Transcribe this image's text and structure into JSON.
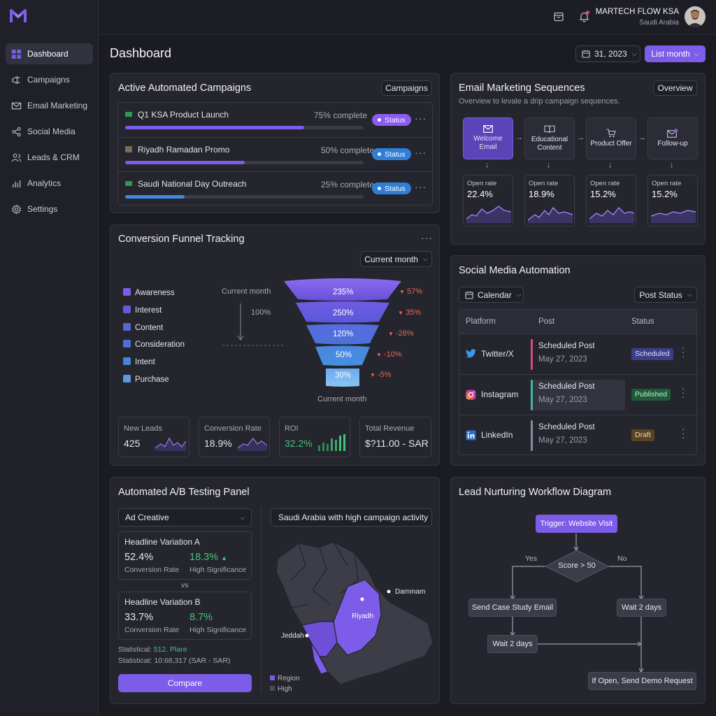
{
  "brand": {
    "accent": "#7c5ce8",
    "logo_icon": "m-logo-icon"
  },
  "sidebar": {
    "items": [
      {
        "label": "Dashboard",
        "icon": "grid-icon"
      },
      {
        "label": "Campaigns",
        "icon": "megaphone-icon"
      },
      {
        "label": "Email Marketing",
        "icon": "mail-icon"
      },
      {
        "label": "Social Media",
        "icon": "share-icon"
      },
      {
        "label": "Leads & CRM",
        "icon": "users-icon"
      },
      {
        "label": "Analytics",
        "icon": "bar-chart-icon"
      },
      {
        "label": "Settings",
        "icon": "gear-icon"
      }
    ]
  },
  "topbar": {
    "user_name": "MARTECH FLOW KSA",
    "user_location": "Saudi Arabia"
  },
  "header": {
    "title": "Dashboard",
    "date_label": "31, 2023",
    "period_label": "List month"
  },
  "campaigns": {
    "title": "Active Automated Campaigns",
    "button": "Campaigns",
    "status_label": "Status",
    "items": [
      {
        "name": "Q1 KSA Product Launch",
        "progress": "75% complete",
        "progress_value": 0.75,
        "color": "#7c5ce8",
        "status_color": "#8a5cf0"
      },
      {
        "name": "Riyadh Ramadan Promo",
        "progress": "50% complete",
        "progress_value": 0.5,
        "color": "#7c5ce8",
        "status_color": "#2f7fd8"
      },
      {
        "name": "Saudi National Day Outreach",
        "progress": "25% complete",
        "progress_value": 0.25,
        "color": "#3d8be0",
        "status_color": "#2f7fd8"
      }
    ]
  },
  "funnel": {
    "title": "Conversion Funnel Tracking",
    "dropdown": "Current month",
    "stages": [
      "Awareness",
      "Interest",
      "Content",
      "Consideration",
      "Intent",
      "Purchase"
    ],
    "left_label": "Current month",
    "mid_label": "100%",
    "bottom_label": "Current month",
    "layers": [
      {
        "value": "235%",
        "change": "57%"
      },
      {
        "value": "250%",
        "change": "35%"
      },
      {
        "value": "120%",
        "change": "-26%"
      },
      {
        "value": "50%",
        "change": "-10%"
      },
      {
        "value": "30%",
        "change": "-5%"
      }
    ],
    "kpis": [
      {
        "label": "New Leads",
        "value": "425"
      },
      {
        "label": "Conversion Rate",
        "value": "18.9%"
      },
      {
        "label": "ROI",
        "value": "32.2%"
      },
      {
        "label": "Total Revenue",
        "value": "$?11.00 - SAR"
      }
    ]
  },
  "email": {
    "title": "Email Marketing Sequences",
    "button": "Overview",
    "subtitle": "Overview to levale a drip campaign sequences.",
    "steps": [
      {
        "label": "Welcome Email",
        "icon": "mail-icon",
        "rate_label": "Open rate",
        "rate": "22.4%"
      },
      {
        "label": "Educational Content",
        "icon": "book-icon",
        "rate_label": "Open rate",
        "rate": "18.9%"
      },
      {
        "label": "Product Offer",
        "icon": "cart-icon",
        "rate_label": "Open rate",
        "rate": "15.2%"
      },
      {
        "label": "Follow-up",
        "icon": "mail-notify-icon",
        "rate_label": "Open rate",
        "rate": "15.2%"
      }
    ]
  },
  "social": {
    "title": "Social Media Automation",
    "calendar": "Calendar",
    "post_status": "Post Status",
    "columns": [
      "Platform",
      "Post",
      "Status"
    ],
    "rows": [
      {
        "platform": "Twitter/X",
        "post": "Scheduled Post",
        "date": "May 27, 2023",
        "status": "Scheduled",
        "status_color": "#3b3f8a",
        "accent": "#d14d8a"
      },
      {
        "platform": "Instagram",
        "post": "Scheduled Post",
        "date": "May 27, 2023",
        "status": "Published",
        "status_color": "#1f5a3a",
        "accent": "#3fb89a"
      },
      {
        "platform": "LinkedIn",
        "post": "Scheduled Post",
        "date": "May 27, 2023",
        "status": "Draft",
        "status_color": "#5a4224",
        "accent": "#8a8ca0"
      }
    ]
  },
  "ab": {
    "title": "Automated A/B Testing Panel",
    "select": "Ad Creative",
    "map_label": "Saudi Arabia with high campaign activity",
    "variant_a": {
      "title": "Headline Variation A",
      "rate": "52.4%",
      "rate_label": "Conversion Rate",
      "lift": "18.3%",
      "lift_label": "High Significance"
    },
    "vs": "vs",
    "variant_b": {
      "title": "Headline Variation B",
      "rate": "33.7%",
      "rate_label": "Conversion Rate",
      "lift": "8.7%",
      "lift_label": "High Significance"
    },
    "stat1_prefix": "Statistical:",
    "stat1_value": "512. Plare",
    "stat2": "Statisticat: 10:68,317 (SAR - SAR)",
    "compare": "Compare",
    "cities": [
      "Dammam",
      "Riyadh",
      "Jeddah"
    ],
    "legend": [
      {
        "label": "Region",
        "color": "#7c5ce8"
      },
      {
        "label": "High",
        "color": "#4a4b55"
      }
    ]
  },
  "workflow": {
    "title": "Lead Nurturing Workflow Diagram",
    "trigger": "Trigger: Website Visit",
    "decision": "Score > 50",
    "yes": "Yes",
    "no": "No",
    "send_case": "Send Case Study Email",
    "wait_right": "Wait 2 days",
    "wait_left": "Wait 2 days",
    "demo": "If Open, Send Demo Request"
  }
}
